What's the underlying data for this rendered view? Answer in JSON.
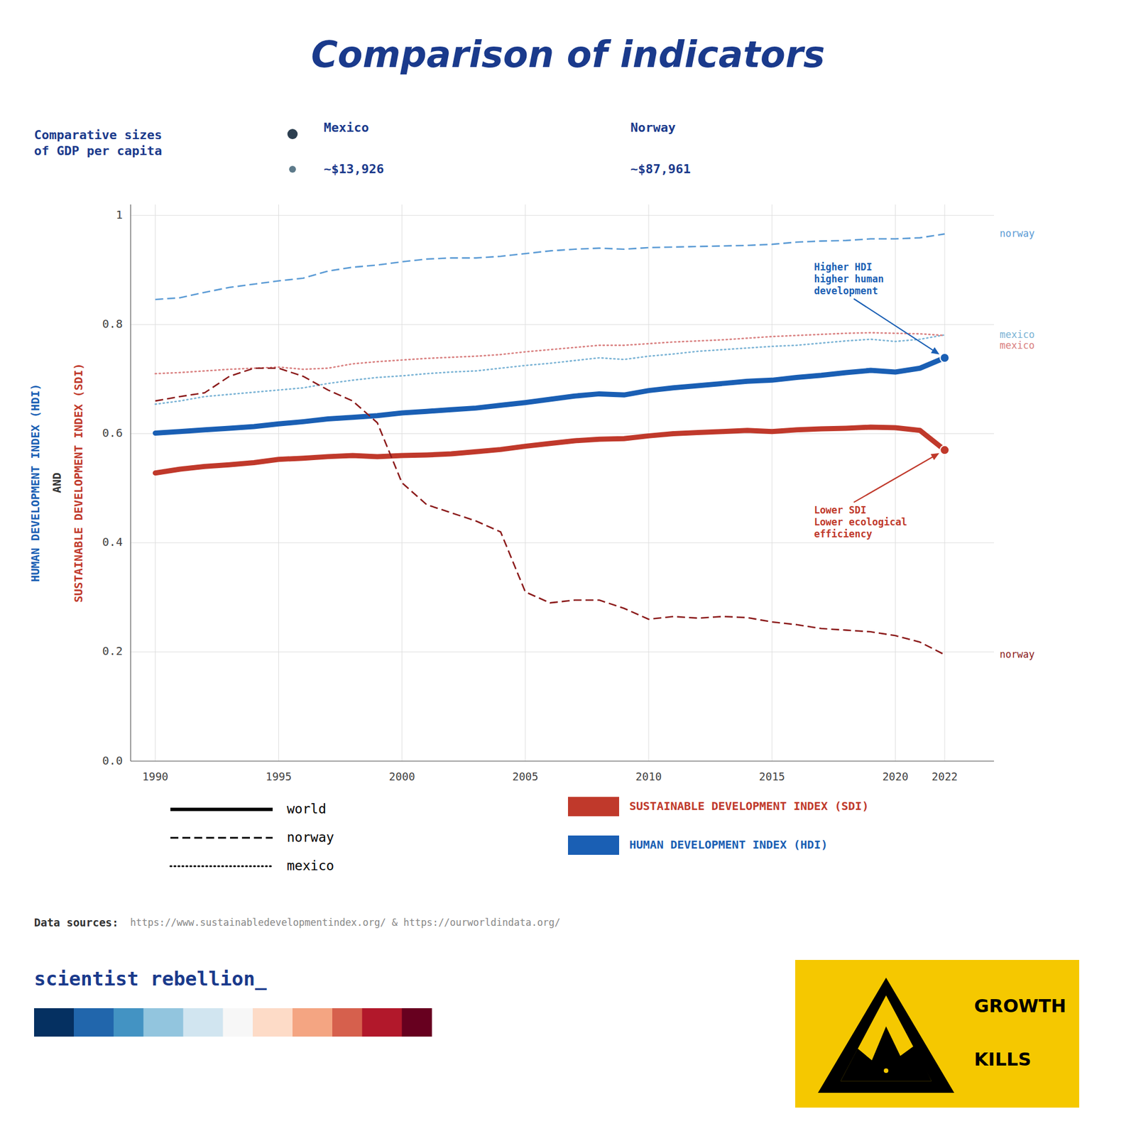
{
  "chart_data": {
    "type": "line",
    "title": "Comparison of indicators",
    "ylabel": [
      {
        "text": "HUMAN DEVELOPMENT INDEX (HDI)",
        "color": "#1a5fb4"
      },
      {
        "text": "AND",
        "color": "#333333"
      },
      {
        "text": "SUSTAINABLE DEVELOPMENT INDEX (SDI)",
        "color": "#c0392b"
      }
    ],
    "x": [
      1990,
      1991,
      1992,
      1993,
      1994,
      1995,
      1996,
      1997,
      1998,
      1999,
      2000,
      2001,
      2002,
      2003,
      2004,
      2005,
      2006,
      2007,
      2008,
      2009,
      2010,
      2011,
      2012,
      2013,
      2014,
      2015,
      2016,
      2017,
      2018,
      2019,
      2020,
      2021,
      2022
    ],
    "xlim": [
      1989,
      2024
    ],
    "xticks": [
      1990,
      1995,
      2000,
      2005,
      2010,
      2015,
      2020,
      2022
    ],
    "ylim": [
      0,
      1.02
    ],
    "yticks": [
      {
        "value": 0,
        "label": "0.0"
      },
      0.2,
      0.4,
      0.6,
      0.8,
      1
    ],
    "grid": true,
    "series": [
      {
        "name": "norway",
        "color": "#5b9bd5",
        "line_style": "dashed",
        "values": [
          0.846,
          0.849,
          0.859,
          0.868,
          0.874,
          0.88,
          0.885,
          0.898,
          0.905,
          0.909,
          0.915,
          0.92,
          0.922,
          0.922,
          0.925,
          0.93,
          0.935,
          0.938,
          0.94,
          0.938,
          0.941,
          0.942,
          0.943,
          0.944,
          0.945,
          0.947,
          0.951,
          0.953,
          0.954,
          0.957,
          0.957,
          0.959,
          0.966
        ]
      },
      {
        "name": "mexico",
        "color": "#7ab3d5",
        "line_style": "dotted",
        "values": [
          0.654,
          0.66,
          0.668,
          0.672,
          0.676,
          0.68,
          0.684,
          0.692,
          0.698,
          0.703,
          0.706,
          0.71,
          0.713,
          0.715,
          0.72,
          0.725,
          0.729,
          0.734,
          0.739,
          0.736,
          0.742,
          0.746,
          0.751,
          0.754,
          0.757,
          0.76,
          0.762,
          0.766,
          0.77,
          0.773,
          0.769,
          0.773,
          0.781
        ]
      },
      {
        "name": "world",
        "color": "#1a5fb4",
        "line_style": "solid",
        "values": [
          0.601,
          0.604,
          0.607,
          0.61,
          0.613,
          0.618,
          0.622,
          0.627,
          0.63,
          0.633,
          0.638,
          0.641,
          0.644,
          0.647,
          0.652,
          0.657,
          0.663,
          0.669,
          0.673,
          0.671,
          0.679,
          0.684,
          0.688,
          0.692,
          0.696,
          0.698,
          0.703,
          0.707,
          0.712,
          0.716,
          0.713,
          0.72,
          0.739
        ]
      },
      {
        "name": "mexico",
        "color": "#d98080",
        "line_style": "dotted",
        "values": [
          0.71,
          0.712,
          0.715,
          0.718,
          0.72,
          0.722,
          0.718,
          0.72,
          0.728,
          0.732,
          0.735,
          0.738,
          0.74,
          0.742,
          0.745,
          0.75,
          0.754,
          0.758,
          0.762,
          0.762,
          0.765,
          0.768,
          0.77,
          0.772,
          0.775,
          0.778,
          0.78,
          0.782,
          0.784,
          0.785,
          0.784,
          0.783,
          0.78
        ]
      },
      {
        "name": "world",
        "color": "#c0392b",
        "line_style": "solid",
        "values": [
          0.528,
          0.535,
          0.54,
          0.543,
          0.547,
          0.553,
          0.555,
          0.558,
          0.56,
          0.558,
          0.56,
          0.561,
          0.563,
          0.567,
          0.571,
          0.577,
          0.582,
          0.587,
          0.59,
          0.591,
          0.596,
          0.6,
          0.602,
          0.604,
          0.606,
          0.604,
          0.607,
          0.609,
          0.61,
          0.612,
          0.611,
          0.606,
          0.57
        ]
      },
      {
        "name": "norway",
        "color": "#8b1a1a",
        "line_style": "dashed",
        "values": [
          0.66,
          0.668,
          0.675,
          0.705,
          0.72,
          0.72,
          0.705,
          0.68,
          0.66,
          0.62,
          0.51,
          0.47,
          0.455,
          0.44,
          0.42,
          0.31,
          0.29,
          0.295,
          0.295,
          0.28,
          0.26,
          0.265,
          0.262,
          0.265,
          0.263,
          0.255,
          0.25,
          0.243,
          0.24,
          0.237,
          0.23,
          0.218,
          0.195
        ]
      }
    ],
    "legend_entries": [
      "world",
      "norway",
      "mexico"
    ],
    "legend_colors": [
      {
        "name": "SUSTAINABLE DEVELOPMENT INDEX (SDI)",
        "color": "#c0392b"
      },
      {
        "name": "HUMAN DEVELOPMENT INDEX (HDI)",
        "color": "#1a5fb4"
      }
    ],
    "annotations": [
      "Comparative sizes\nof GDP per capita",
      "Mexico",
      "~$13,926",
      "Norway",
      "~$87,961",
      "Higher HDI\nhigher human\ndevelopment",
      "Lower SDI\nLower ecological\nefficiency",
      "Data sources:",
      "  https://www.sustainabledevelopmentindex.org/ & https://ourworldindata.org/",
      "scientist rebellion_",
      "GROWTH",
      "KILLS"
    ]
  }
}
